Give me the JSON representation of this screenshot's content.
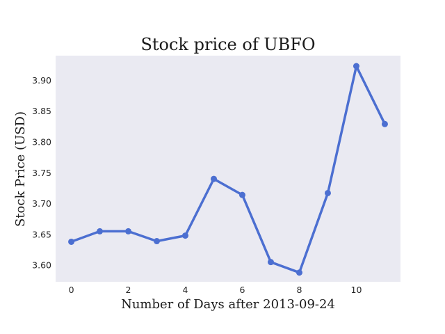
{
  "chart_data": {
    "type": "line",
    "title": "Stock price of UBFO",
    "xlabel": "Number of Days after 2013-09-24",
    "ylabel": "Stock Price (USD)",
    "x": [
      0,
      1,
      2,
      3,
      4,
      5,
      6,
      7,
      8,
      9,
      10,
      11
    ],
    "series": [
      {
        "values": [
          3.638,
          3.655,
          3.655,
          3.639,
          3.648,
          3.74,
          3.714,
          3.605,
          3.588,
          3.717,
          3.923,
          3.829
        ]
      }
    ],
    "xlim": [
      -0.55,
      11.55
    ],
    "ylim": [
      3.573,
      3.94
    ],
    "xticks": [
      0,
      2,
      4,
      6,
      8,
      10
    ],
    "xtick_labels": [
      "0",
      "2",
      "4",
      "6",
      "8",
      "10"
    ],
    "yticks": [
      3.6,
      3.65,
      3.7,
      3.75,
      3.8,
      3.85,
      3.9
    ],
    "ytick_labels": [
      "3.60",
      "3.65",
      "3.70",
      "3.75",
      "3.80",
      "3.85",
      "3.90"
    ],
    "grid": false,
    "legend": "none",
    "colors": {
      "line": "#4c6fd1",
      "plot_background": "#eaeaf2"
    }
  }
}
